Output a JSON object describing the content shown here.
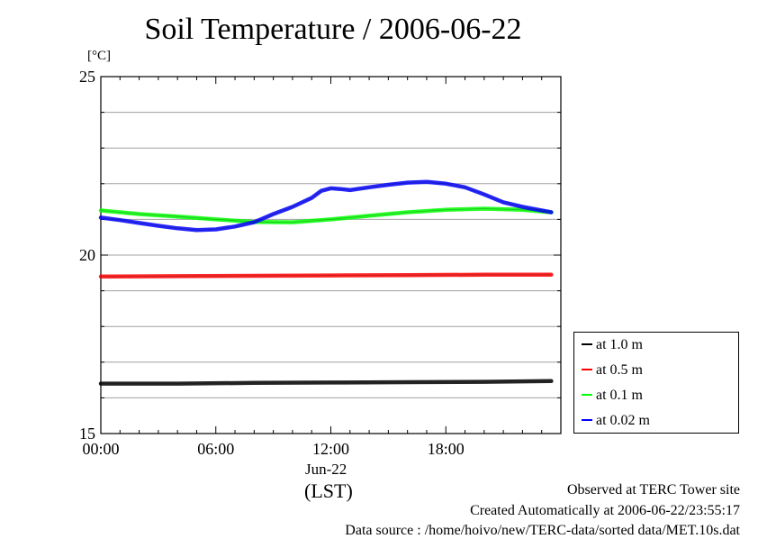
{
  "chart_data": {
    "type": "line",
    "title": "Soil Temperature / 2006-06-22",
    "ylabel_unit": "[°C]",
    "xlabel": "(LST)",
    "x_date_label": "Jun-22",
    "ylim": [
      15,
      25
    ],
    "yticks": [
      "15",
      "20",
      "25"
    ],
    "xlim": [
      0,
      24
    ],
    "xticks": [
      {
        "label": "00:00",
        "x": 0
      },
      {
        "label": "06:00",
        "x": 6
      },
      {
        "label": "12:00",
        "x": 12
      },
      {
        "label": "18:00",
        "x": 18
      }
    ],
    "y_grid": [
      16,
      17,
      18,
      19,
      20,
      21,
      22,
      23,
      24
    ],
    "grid": true,
    "legend_position": "bottom-right",
    "series": [
      {
        "name": "at 1.0 m",
        "color": "#000000",
        "x": [
          0,
          4,
          8,
          12,
          16,
          20,
          23.5
        ],
        "y": [
          16.4,
          16.4,
          16.42,
          16.43,
          16.44,
          16.45,
          16.47
        ]
      },
      {
        "name": "at 0.5 m",
        "color": "#ff0000",
        "x": [
          0,
          4,
          8,
          12,
          16,
          20,
          23.5
        ],
        "y": [
          19.4,
          19.41,
          19.42,
          19.43,
          19.44,
          19.45,
          19.45
        ]
      },
      {
        "name": "at 0.1 m",
        "color": "#00ff00",
        "x": [
          0,
          2,
          4,
          6,
          8,
          10,
          12,
          14,
          16,
          18,
          20,
          22,
          23.5
        ],
        "y": [
          21.25,
          21.15,
          21.08,
          21.0,
          20.93,
          20.92,
          21.0,
          21.1,
          21.2,
          21.27,
          21.3,
          21.27,
          21.2
        ]
      },
      {
        "name": "at 0.02 m",
        "color": "#0000ff",
        "x": [
          0,
          1,
          2,
          3,
          4,
          5,
          6,
          7,
          8,
          9,
          10,
          11,
          11.5,
          12,
          12.5,
          13,
          14,
          15,
          16,
          17,
          18,
          19,
          20,
          21,
          22,
          23,
          23.5
        ],
        "y": [
          21.05,
          20.98,
          20.9,
          20.82,
          20.75,
          20.7,
          20.72,
          20.8,
          20.92,
          21.15,
          21.35,
          21.6,
          21.8,
          21.87,
          21.85,
          21.82,
          21.9,
          21.97,
          22.03,
          22.05,
          22.0,
          21.9,
          21.7,
          21.48,
          21.35,
          21.25,
          21.2
        ]
      }
    ]
  },
  "footer": {
    "observed": "Observed at TERC Tower site",
    "created": "Created Automatically at 2006-06-22/23:55:17",
    "source": "Data source : /home/hoivo/new/TERC-data/sorted  data/MET.10s.dat"
  }
}
